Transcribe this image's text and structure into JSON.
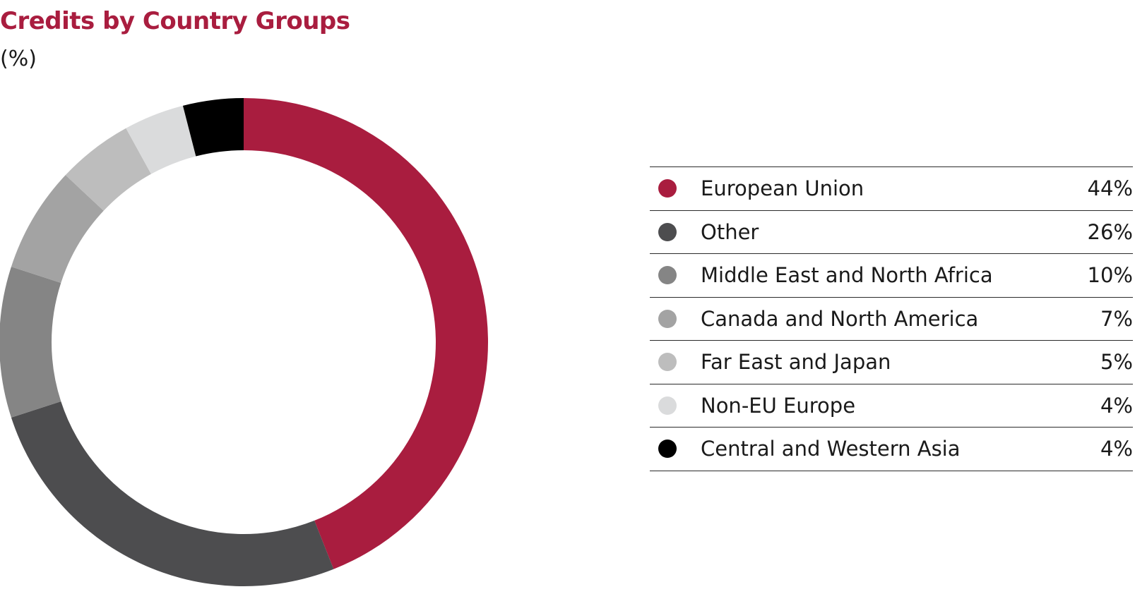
{
  "chart_data": {
    "type": "pie",
    "title": "Credits by Country Groups",
    "subtitle": "(%)",
    "legend_position": "right",
    "slices": [
      {
        "label": "European Union",
        "value": 44,
        "display": "44%",
        "color": "#a91d3f"
      },
      {
        "label": "Other",
        "value": 26,
        "display": "26%",
        "color": "#4d4d4f"
      },
      {
        "label": "Middle East and North Africa",
        "value": 10,
        "display": "10%",
        "color": "#858585"
      },
      {
        "label": "Canada and North America",
        "value": 7,
        "display": "7%",
        "color": "#a3a3a3"
      },
      {
        "label": "Far East and Japan",
        "value": 5,
        "display": "5%",
        "color": "#bdbdbd"
      },
      {
        "label": "Non-EU Europe",
        "value": 4,
        "display": "4%",
        "color": "#dadbdc"
      },
      {
        "label": "Central and Western Asia",
        "value": 4,
        "display": "4%",
        "color": "#000000"
      }
    ]
  }
}
